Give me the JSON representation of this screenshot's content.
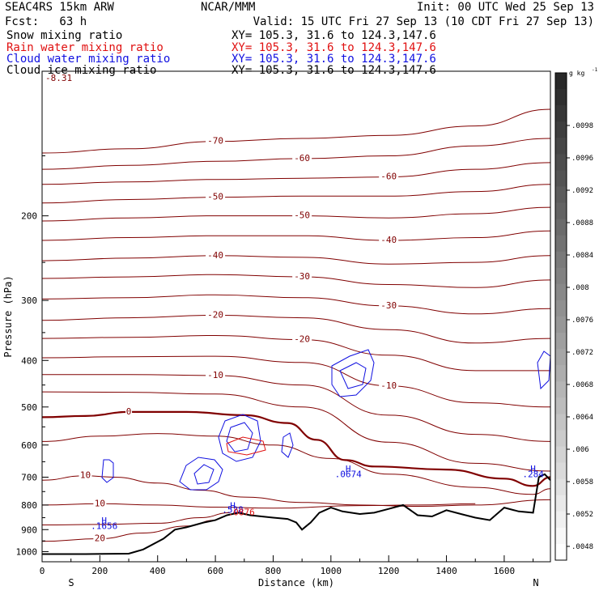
{
  "header": {
    "model": "SEAC4RS 15km ARW",
    "fcst": "Fcst:   63 h",
    "org": "NCAR/MMM",
    "init": "Init: 00 UTC Wed 25 Sep 13",
    "valid": "Valid: 15 UTC Fri 27 Sep 13 (10 CDT Fri 27 Sep 13)",
    "fields": [
      {
        "name": "Snow mixing ratio",
        "xy": "XY= 105.3, 31.6 to 124.3,147.6",
        "color": "#000000"
      },
      {
        "name": "Rain water mixing ratio",
        "xy": "XY= 105.3, 31.6 to 124.3,147.6",
        "color": "#e01010"
      },
      {
        "name": "Cloud water mixing ratio",
        "xy": "XY= 105.3, 31.6 to 124.3,147.6",
        "color": "#1010e0"
      },
      {
        "name": "Cloud ice mixing ratio",
        "xy": "XY= 105.3, 31.6 to 124.3,147.6",
        "color": "#000000"
      }
    ]
  },
  "chart_data": {
    "type": "contour-cross-section",
    "xlabel": "Distance (km)",
    "ylabel": "Pressure (hPa)",
    "xlim": [
      0,
      1760
    ],
    "ylim": [
      1050,
      100
    ],
    "y_log_scale": true,
    "x_ticks": [
      0,
      200,
      400,
      600,
      800,
      1000,
      1200,
      1400,
      1600
    ],
    "y_ticks": [
      200,
      300,
      400,
      500,
      600,
      700,
      800,
      900,
      1000
    ],
    "x_end_labels": {
      "left": "S",
      "right": "N"
    },
    "corner_label": "-8.31",
    "colorbar": {
      "unit": "g kg",
      "unit_exponent": "-1",
      "tick_labels": [
        ".0098",
        ".0096",
        ".0092",
        ".0088",
        ".0084",
        ".008",
        ".0076",
        ".0072",
        ".0068",
        ".0064",
        ".006",
        ".0058",
        ".0052",
        ".0048"
      ]
    },
    "temperature_contours": [
      {
        "label": "-70",
        "points": [
          [
            0,
            148
          ],
          [
            300,
            145
          ],
          [
            600,
            140
          ],
          [
            900,
            138
          ],
          [
            1200,
            136
          ],
          [
            1500,
            130
          ],
          [
            1760,
            120
          ]
        ]
      },
      {
        "label": "-60",
        "points": [
          [
            0,
            160
          ],
          [
            300,
            157
          ],
          [
            600,
            154
          ],
          [
            900,
            152
          ],
          [
            1200,
            150
          ],
          [
            1500,
            143
          ],
          [
            1760,
            138
          ]
        ]
      },
      {
        "label": "-60",
        "points": [
          [
            0,
            172
          ],
          [
            300,
            170
          ],
          [
            600,
            168
          ],
          [
            900,
            167
          ],
          [
            1200,
            166
          ],
          [
            1500,
            160
          ],
          [
            1760,
            155
          ]
        ]
      },
      {
        "label": "-50",
        "points": [
          [
            0,
            188
          ],
          [
            300,
            185
          ],
          [
            600,
            183
          ],
          [
            900,
            182
          ],
          [
            1200,
            182
          ],
          [
            1500,
            178
          ],
          [
            1760,
            172
          ]
        ]
      },
      {
        "label": "-50",
        "points": [
          [
            0,
            205
          ],
          [
            300,
            202
          ],
          [
            600,
            200
          ],
          [
            900,
            200
          ],
          [
            1200,
            202
          ],
          [
            1500,
            198
          ],
          [
            1760,
            192
          ]
        ]
      },
      {
        "label": "-40",
        "points": [
          [
            0,
            225
          ],
          [
            300,
            222
          ],
          [
            600,
            220
          ],
          [
            900,
            220
          ],
          [
            1200,
            225
          ],
          [
            1500,
            222
          ],
          [
            1760,
            215
          ]
        ]
      },
      {
        "label": "-40",
        "points": [
          [
            0,
            248
          ],
          [
            300,
            245
          ],
          [
            600,
            242
          ],
          [
            900,
            244
          ],
          [
            1200,
            252
          ],
          [
            1500,
            250
          ],
          [
            1760,
            242
          ]
        ]
      },
      {
        "label": "-30",
        "points": [
          [
            0,
            270
          ],
          [
            300,
            268
          ],
          [
            600,
            265
          ],
          [
            900,
            268
          ],
          [
            1200,
            278
          ],
          [
            1500,
            282
          ],
          [
            1760,
            272
          ]
        ]
      },
      {
        "label": "-30",
        "points": [
          [
            0,
            298
          ],
          [
            300,
            296
          ],
          [
            600,
            292
          ],
          [
            900,
            296
          ],
          [
            1200,
            308
          ],
          [
            1500,
            320
          ],
          [
            1760,
            312
          ]
        ]
      },
      {
        "label": "-20",
        "points": [
          [
            0,
            330
          ],
          [
            300,
            326
          ],
          [
            600,
            322
          ],
          [
            900,
            326
          ],
          [
            1200,
            345
          ],
          [
            1500,
            368
          ],
          [
            1760,
            360
          ]
        ]
      },
      {
        "label": "-20",
        "points": [
          [
            0,
            360
          ],
          [
            300,
            358
          ],
          [
            600,
            355
          ],
          [
            900,
            362
          ],
          [
            1200,
            390
          ],
          [
            1500,
            420
          ],
          [
            1760,
            420
          ]
        ]
      },
      {
        "label": "-10",
        "points": [
          [
            0,
            395
          ],
          [
            300,
            393
          ],
          [
            600,
            392
          ],
          [
            900,
            404
          ],
          [
            1200,
            452
          ],
          [
            1500,
            490
          ],
          [
            1760,
            500
          ]
        ]
      },
      {
        "label": "-10",
        "points": [
          [
            0,
            428
          ],
          [
            300,
            428
          ],
          [
            600,
            430
          ],
          [
            900,
            450
          ],
          [
            1200,
            520
          ],
          [
            1500,
            570
          ],
          [
            1760,
            590
          ]
        ]
      },
      {
        "label": "",
        "points": [
          [
            0,
            465
          ],
          [
            300,
            466
          ],
          [
            600,
            470
          ],
          [
            900,
            500
          ],
          [
            1200,
            592
          ],
          [
            1500,
            655
          ],
          [
            1760,
            680
          ]
        ]
      }
    ],
    "zero_contour": {
      "label": "0",
      "points": [
        [
          0,
          525
        ],
        [
          150,
          522
        ],
        [
          300,
          512
        ],
        [
          500,
          512
        ],
        [
          700,
          520
        ],
        [
          850,
          540
        ],
        [
          950,
          585
        ],
        [
          1050,
          645
        ],
        [
          1150,
          665
        ],
        [
          1400,
          675
        ],
        [
          1600,
          705
        ],
        [
          1700,
          730
        ],
        [
          1760,
          700
        ]
      ]
    },
    "warm_contours": [
      {
        "label": "",
        "points": [
          [
            0,
            590
          ],
          [
            200,
            575
          ],
          [
            400,
            568
          ],
          [
            600,
            575
          ],
          [
            800,
            600
          ],
          [
            1000,
            640
          ],
          [
            1200,
            690
          ],
          [
            1500,
            735
          ],
          [
            1700,
            760
          ],
          [
            1760,
            740
          ]
        ]
      },
      {
        "label": "10",
        "points": [
          [
            0,
            710
          ],
          [
            150,
            695
          ],
          [
            250,
            700
          ],
          [
            400,
            720
          ],
          [
            550,
            745
          ],
          [
            700,
            770
          ],
          [
            900,
            790
          ],
          [
            1100,
            800
          ],
          [
            1300,
            805
          ],
          [
            1500,
            800
          ],
          [
            1760,
            780
          ]
        ]
      },
      {
        "label": "10",
        "points": [
          [
            0,
            800
          ],
          [
            200,
            795
          ],
          [
            400,
            800
          ],
          [
            600,
            808
          ],
          [
            800,
            812
          ],
          [
            1100,
            802
          ],
          [
            1300,
            800
          ],
          [
            1500,
            795
          ]
        ]
      },
      {
        "label": "",
        "points": [
          [
            0,
            880
          ],
          [
            200,
            878
          ],
          [
            400,
            873
          ],
          [
            550,
            850
          ],
          [
            650,
            830
          ]
        ]
      },
      {
        "label": "20",
        "points": [
          [
            0,
            952
          ],
          [
            200,
            940
          ],
          [
            350,
            915
          ],
          [
            500,
            885
          ],
          [
            600,
            860
          ]
        ]
      }
    ],
    "terrain_pressure": [
      [
        0,
        1012
      ],
      [
        150,
        1012
      ],
      [
        300,
        1010
      ],
      [
        350,
        990
      ],
      [
        420,
        940
      ],
      [
        460,
        900
      ],
      [
        500,
        890
      ],
      [
        560,
        870
      ],
      [
        600,
        860
      ],
      [
        640,
        840
      ],
      [
        680,
        830
      ],
      [
        720,
        840
      ],
      [
        760,
        845
      ],
      [
        800,
        850
      ],
      [
        850,
        855
      ],
      [
        880,
        870
      ],
      [
        900,
        900
      ],
      [
        930,
        870
      ],
      [
        960,
        830
      ],
      [
        1000,
        810
      ],
      [
        1040,
        825
      ],
      [
        1100,
        835
      ],
      [
        1150,
        830
      ],
      [
        1200,
        815
      ],
      [
        1250,
        800
      ],
      [
        1300,
        840
      ],
      [
        1350,
        845
      ],
      [
        1400,
        820
      ],
      [
        1450,
        835
      ],
      [
        1500,
        850
      ],
      [
        1550,
        860
      ],
      [
        1600,
        810
      ],
      [
        1650,
        825
      ],
      [
        1700,
        830
      ],
      [
        1720,
        700
      ],
      [
        1740,
        690
      ],
      [
        1760,
        710
      ]
    ],
    "cloud_water_max_labels": [
      {
        "text": "H",
        "x": 215,
        "p": 875
      },
      {
        "text": ".1656",
        "x": 215,
        "p": 898
      },
      {
        "text": "H",
        "x": 660,
        "p": 815
      },
      {
        "text": ".528",
        "x": 660,
        "p": 830
      },
      {
        "text": "H",
        "x": 1060,
        "p": 683
      },
      {
        "text": ".0674",
        "x": 1060,
        "p": 700
      },
      {
        "text": "H",
        "x": 1700,
        "p": 683
      },
      {
        "text": ".284",
        "x": 1700,
        "p": 700
      }
    ],
    "rain_max_labels": [
      {
        "text": ".0876",
        "x": 690,
        "p": 840
      }
    ]
  }
}
